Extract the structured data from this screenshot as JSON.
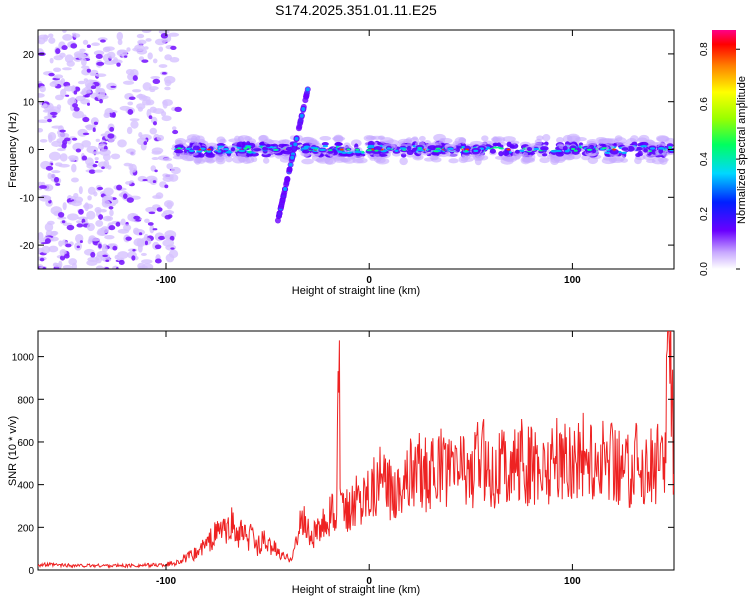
{
  "title": "S174.2025.351.01.11.E25",
  "chart_data": [
    {
      "type": "heatmap",
      "xlabel": "Height of straight line (km)",
      "ylabel": "Frequency (Hz)",
      "xlim": [
        -163,
        150
      ],
      "ylim": [
        -25,
        25
      ],
      "xticks": [
        -100,
        0,
        100
      ],
      "yticks": [
        -20,
        -10,
        0,
        10,
        20
      ],
      "colorbar": {
        "label": "Normalized spectral amplitude",
        "range": [
          0,
          0.87
        ],
        "ticks": [
          0.0,
          0.2,
          0.4,
          0.6,
          0.8
        ]
      },
      "features": [
        {
          "description": "diffuse broadband noise",
          "x_range": [
            -163,
            -95
          ],
          "y_range": [
            -25,
            25
          ]
        },
        {
          "description": "narrow band near 0 Hz",
          "x_range": [
            -95,
            150
          ],
          "y_center": 0
        },
        {
          "description": "rising tones",
          "x": [
            -45,
            -30
          ],
          "y_range": [
            -15,
            13
          ]
        }
      ]
    },
    {
      "type": "line",
      "xlabel": "Height of straight line (km)",
      "ylabel": "SNR (10 * v/v)",
      "xlim": [
        -163,
        150
      ],
      "ylim": [
        0,
        1120
      ],
      "xticks": [
        -100,
        0,
        100
      ],
      "yticks": [
        0,
        200,
        400,
        600,
        800,
        1000
      ],
      "series": [
        {
          "color": "#ee2222",
          "x": [
            -163,
            -150,
            -140,
            -130,
            -120,
            -110,
            -100,
            -95,
            -90,
            -85,
            -80,
            -75,
            -72,
            -70,
            -68,
            -65,
            -62,
            -60,
            -58,
            -55,
            -52,
            -50,
            -48,
            -45,
            -42,
            -40,
            -38,
            -35,
            -33,
            -30,
            -28,
            -26,
            -24,
            -22,
            -20,
            -18,
            -16,
            -15,
            -14,
            -12,
            -10,
            -8,
            -6,
            -4,
            -2,
            0,
            5,
            10,
            15,
            20,
            25,
            30,
            35,
            40,
            45,
            50,
            55,
            60,
            65,
            70,
            75,
            80,
            85,
            90,
            95,
            100,
            105,
            110,
            115,
            120,
            125,
            130,
            135,
            140,
            145,
            148,
            150
          ],
          "y": [
            25,
            22,
            20,
            21,
            20,
            22,
            25,
            35,
            55,
            80,
            120,
            170,
            200,
            160,
            230,
            150,
            180,
            120,
            170,
            110,
            140,
            100,
            120,
            80,
            60,
            55,
            70,
            150,
            250,
            180,
            140,
            200,
            160,
            230,
            250,
            280,
            200,
            1050,
            300,
            240,
            320,
            290,
            360,
            330,
            380,
            400,
            420,
            380,
            410,
            440,
            470,
            430,
            480,
            450,
            500,
            460,
            520,
            470,
            500,
            460,
            510,
            480,
            470,
            500,
            520,
            490,
            530,
            480,
            510,
            520,
            470,
            500,
            480,
            510,
            490,
            1120,
            450
          ]
        }
      ]
    }
  ]
}
